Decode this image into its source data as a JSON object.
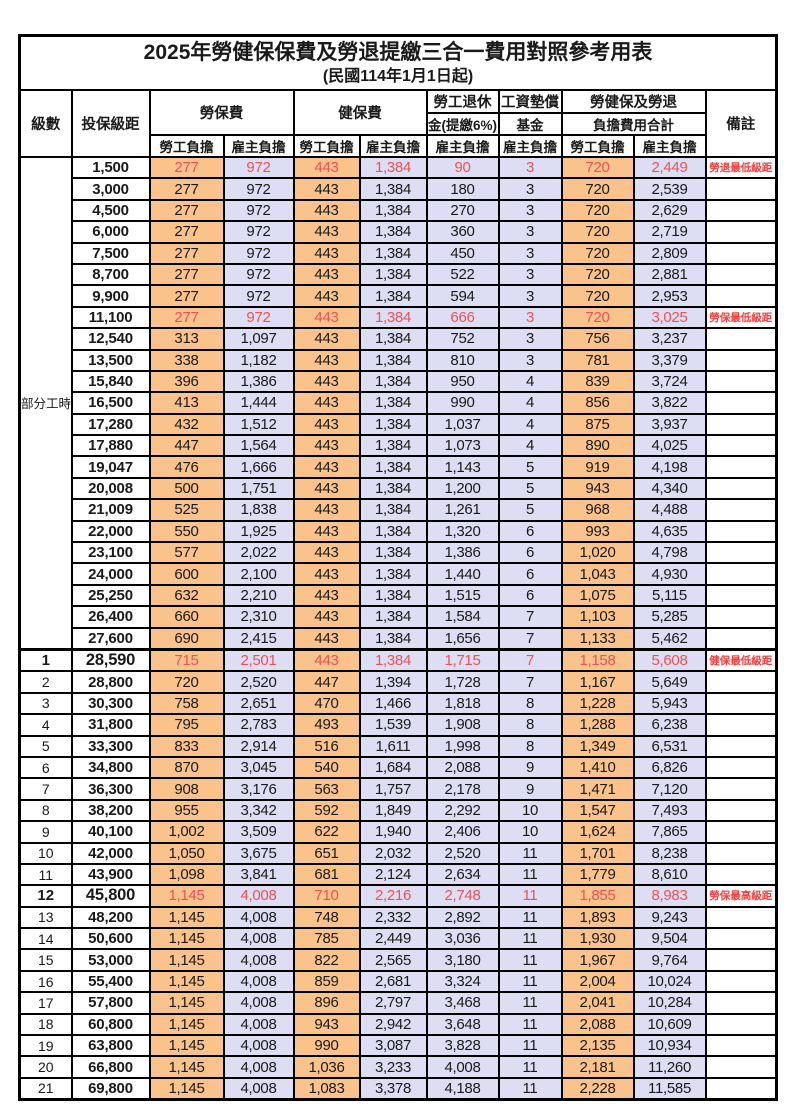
{
  "title": "2025年勞健保保費及勞退提繳三合一費用對照參考用表",
  "subtitle": "(民國114年1月1日起)",
  "colors": {
    "orange": "#FAC38C",
    "lavender": "#DDDDF3",
    "red_value": "#ED5157",
    "red_remark": "#FB3C3C",
    "border": "#000000"
  },
  "header": {
    "level": "級數",
    "bracket": "投保級距",
    "labor_insurance": "勞保費",
    "health_insurance": "健保費",
    "pension_line1": "勞工退休",
    "pension_line2": "金(提繳6%)",
    "wage_fund_line1": "工資墊償",
    "wage_fund_line2": "基金",
    "total_line1": "勞健保及勞退",
    "total_line2": "負擔費用合計",
    "remark": "備註",
    "employee_burden": "勞工負擔",
    "employer_burden": "雇主負擔"
  },
  "part_time": {
    "label": "部分工時",
    "rowspan": 23
  },
  "rows": [
    {
      "level": null,
      "pt_first": true,
      "bracket": "1,500",
      "fees": [
        "277",
        "972",
        "443",
        "1,384",
        "90",
        "3",
        "720",
        "2,449"
      ],
      "remark": "勞退最低級距",
      "red": true,
      "big": false
    },
    {
      "level": null,
      "bracket": "3,000",
      "fees": [
        "277",
        "972",
        "443",
        "1,384",
        "180",
        "3",
        "720",
        "2,539"
      ],
      "remark": "",
      "red": false,
      "big": false
    },
    {
      "level": null,
      "bracket": "4,500",
      "fees": [
        "277",
        "972",
        "443",
        "1,384",
        "270",
        "3",
        "720",
        "2,629"
      ],
      "remark": "",
      "red": false,
      "big": false
    },
    {
      "level": null,
      "bracket": "6,000",
      "fees": [
        "277",
        "972",
        "443",
        "1,384",
        "360",
        "3",
        "720",
        "2,719"
      ],
      "remark": "",
      "red": false,
      "big": false
    },
    {
      "level": null,
      "bracket": "7,500",
      "fees": [
        "277",
        "972",
        "443",
        "1,384",
        "450",
        "3",
        "720",
        "2,809"
      ],
      "remark": "",
      "red": false,
      "big": false
    },
    {
      "level": null,
      "bracket": "8,700",
      "fees": [
        "277",
        "972",
        "443",
        "1,384",
        "522",
        "3",
        "720",
        "2,881"
      ],
      "remark": "",
      "red": false,
      "big": false
    },
    {
      "level": null,
      "bracket": "9,900",
      "fees": [
        "277",
        "972",
        "443",
        "1,384",
        "594",
        "3",
        "720",
        "2,953"
      ],
      "remark": "",
      "red": false,
      "big": false
    },
    {
      "level": null,
      "bracket": "11,100",
      "fees": [
        "277",
        "972",
        "443",
        "1,384",
        "666",
        "3",
        "720",
        "3,025"
      ],
      "remark": "勞保最低級距",
      "red": true,
      "big": false
    },
    {
      "level": null,
      "bracket": "12,540",
      "fees": [
        "313",
        "1,097",
        "443",
        "1,384",
        "752",
        "3",
        "756",
        "3,237"
      ],
      "remark": "",
      "red": false,
      "big": false
    },
    {
      "level": null,
      "bracket": "13,500",
      "fees": [
        "338",
        "1,182",
        "443",
        "1,384",
        "810",
        "3",
        "781",
        "3,379"
      ],
      "remark": "",
      "red": false,
      "big": false
    },
    {
      "level": null,
      "bracket": "15,840",
      "fees": [
        "396",
        "1,386",
        "443",
        "1,384",
        "950",
        "4",
        "839",
        "3,724"
      ],
      "remark": "",
      "red": false,
      "big": false
    },
    {
      "level": null,
      "bracket": "16,500",
      "fees": [
        "413",
        "1,444",
        "443",
        "1,384",
        "990",
        "4",
        "856",
        "3,822"
      ],
      "remark": "",
      "red": false,
      "big": false
    },
    {
      "level": null,
      "bracket": "17,280",
      "fees": [
        "432",
        "1,512",
        "443",
        "1,384",
        "1,037",
        "4",
        "875",
        "3,937"
      ],
      "remark": "",
      "red": false,
      "big": false
    },
    {
      "level": null,
      "bracket": "17,880",
      "fees": [
        "447",
        "1,564",
        "443",
        "1,384",
        "1,073",
        "4",
        "890",
        "4,025"
      ],
      "remark": "",
      "red": false,
      "big": false
    },
    {
      "level": null,
      "bracket": "19,047",
      "fees": [
        "476",
        "1,666",
        "443",
        "1,384",
        "1,143",
        "5",
        "919",
        "4,198"
      ],
      "remark": "",
      "red": false,
      "big": false
    },
    {
      "level": null,
      "bracket": "20,008",
      "fees": [
        "500",
        "1,751",
        "443",
        "1,384",
        "1,200",
        "5",
        "943",
        "4,340"
      ],
      "remark": "",
      "red": false,
      "big": false
    },
    {
      "level": null,
      "bracket": "21,009",
      "fees": [
        "525",
        "1,838",
        "443",
        "1,384",
        "1,261",
        "5",
        "968",
        "4,488"
      ],
      "remark": "",
      "red": false,
      "big": false
    },
    {
      "level": null,
      "bracket": "22,000",
      "fees": [
        "550",
        "1,925",
        "443",
        "1,384",
        "1,320",
        "6",
        "993",
        "4,635"
      ],
      "remark": "",
      "red": false,
      "big": false
    },
    {
      "level": null,
      "bracket": "23,100",
      "fees": [
        "577",
        "2,022",
        "443",
        "1,384",
        "1,386",
        "6",
        "1,020",
        "4,798"
      ],
      "remark": "",
      "red": false,
      "big": false
    },
    {
      "level": null,
      "bracket": "24,000",
      "fees": [
        "600",
        "2,100",
        "443",
        "1,384",
        "1,440",
        "6",
        "1,043",
        "4,930"
      ],
      "remark": "",
      "red": false,
      "big": false
    },
    {
      "level": null,
      "bracket": "25,250",
      "fees": [
        "632",
        "2,210",
        "443",
        "1,384",
        "1,515",
        "6",
        "1,075",
        "5,115"
      ],
      "remark": "",
      "red": false,
      "big": false
    },
    {
      "level": null,
      "bracket": "26,400",
      "fees": [
        "660",
        "2,310",
        "443",
        "1,384",
        "1,584",
        "7",
        "1,103",
        "5,285"
      ],
      "remark": "",
      "red": false,
      "big": false
    },
    {
      "level": null,
      "bracket": "27,600",
      "fees": [
        "690",
        "2,415",
        "443",
        "1,384",
        "1,656",
        "7",
        "1,133",
        "5,462"
      ],
      "remark": "",
      "red": false,
      "big": false
    },
    {
      "level": "1",
      "sep": true,
      "bracket": "28,590",
      "fees": [
        "715",
        "2,501",
        "443",
        "1,384",
        "1,715",
        "7",
        "1,158",
        "5,608"
      ],
      "remark": "健保最低級距",
      "red": true,
      "big": true
    },
    {
      "level": "2",
      "bracket": "28,800",
      "fees": [
        "720",
        "2,520",
        "447",
        "1,394",
        "1,728",
        "7",
        "1,167",
        "5,649"
      ],
      "remark": "",
      "red": false,
      "big": false
    },
    {
      "level": "3",
      "bracket": "30,300",
      "fees": [
        "758",
        "2,651",
        "470",
        "1,466",
        "1,818",
        "8",
        "1,228",
        "5,943"
      ],
      "remark": "",
      "red": false,
      "big": false
    },
    {
      "level": "4",
      "bracket": "31,800",
      "fees": [
        "795",
        "2,783",
        "493",
        "1,539",
        "1,908",
        "8",
        "1,288",
        "6,238"
      ],
      "remark": "",
      "red": false,
      "big": false
    },
    {
      "level": "5",
      "bracket": "33,300",
      "fees": [
        "833",
        "2,914",
        "516",
        "1,611",
        "1,998",
        "8",
        "1,349",
        "6,531"
      ],
      "remark": "",
      "red": false,
      "big": false
    },
    {
      "level": "6",
      "bracket": "34,800",
      "fees": [
        "870",
        "3,045",
        "540",
        "1,684",
        "2,088",
        "9",
        "1,410",
        "6,826"
      ],
      "remark": "",
      "red": false,
      "big": false
    },
    {
      "level": "7",
      "bracket": "36,300",
      "fees": [
        "908",
        "3,176",
        "563",
        "1,757",
        "2,178",
        "9",
        "1,471",
        "7,120"
      ],
      "remark": "",
      "red": false,
      "big": false
    },
    {
      "level": "8",
      "bracket": "38,200",
      "fees": [
        "955",
        "3,342",
        "592",
        "1,849",
        "2,292",
        "10",
        "1,547",
        "7,493"
      ],
      "remark": "",
      "red": false,
      "big": false
    },
    {
      "level": "9",
      "bracket": "40,100",
      "fees": [
        "1,002",
        "3,509",
        "622",
        "1,940",
        "2,406",
        "10",
        "1,624",
        "7,865"
      ],
      "remark": "",
      "red": false,
      "big": false
    },
    {
      "level": "10",
      "bracket": "42,000",
      "fees": [
        "1,050",
        "3,675",
        "651",
        "2,032",
        "2,520",
        "11",
        "1,701",
        "8,238"
      ],
      "remark": "",
      "red": false,
      "big": false
    },
    {
      "level": "11",
      "bracket": "43,900",
      "fees": [
        "1,098",
        "3,841",
        "681",
        "2,124",
        "2,634",
        "11",
        "1,779",
        "8,610"
      ],
      "remark": "",
      "red": false,
      "big": false
    },
    {
      "level": "12",
      "bracket": "45,800",
      "fees": [
        "1,145",
        "4,008",
        "710",
        "2,216",
        "2,748",
        "11",
        "1,855",
        "8,983"
      ],
      "remark": "勞保最高級距",
      "red": true,
      "big": true
    },
    {
      "level": "13",
      "bracket": "48,200",
      "fees": [
        "1,145",
        "4,008",
        "748",
        "2,332",
        "2,892",
        "11",
        "1,893",
        "9,243"
      ],
      "remark": "",
      "red": false,
      "big": false
    },
    {
      "level": "14",
      "bracket": "50,600",
      "fees": [
        "1,145",
        "4,008",
        "785",
        "2,449",
        "3,036",
        "11",
        "1,930",
        "9,504"
      ],
      "remark": "",
      "red": false,
      "big": false
    },
    {
      "level": "15",
      "bracket": "53,000",
      "fees": [
        "1,145",
        "4,008",
        "822",
        "2,565",
        "3,180",
        "11",
        "1,967",
        "9,764"
      ],
      "remark": "",
      "red": false,
      "big": false
    },
    {
      "level": "16",
      "bracket": "55,400",
      "fees": [
        "1,145",
        "4,008",
        "859",
        "2,681",
        "3,324",
        "11",
        "2,004",
        "10,024"
      ],
      "remark": "",
      "red": false,
      "big": false
    },
    {
      "level": "17",
      "bracket": "57,800",
      "fees": [
        "1,145",
        "4,008",
        "896",
        "2,797",
        "3,468",
        "11",
        "2,041",
        "10,284"
      ],
      "remark": "",
      "red": false,
      "big": false
    },
    {
      "level": "18",
      "bracket": "60,800",
      "fees": [
        "1,145",
        "4,008",
        "943",
        "2,942",
        "3,648",
        "11",
        "2,088",
        "10,609"
      ],
      "remark": "",
      "red": false,
      "big": false
    },
    {
      "level": "19",
      "bracket": "63,800",
      "fees": [
        "1,145",
        "4,008",
        "990",
        "3,087",
        "3,828",
        "11",
        "2,135",
        "10,934"
      ],
      "remark": "",
      "red": false,
      "big": false
    },
    {
      "level": "20",
      "bracket": "66,800",
      "fees": [
        "1,145",
        "4,008",
        "1,036",
        "3,233",
        "4,008",
        "11",
        "2,181",
        "11,260"
      ],
      "remark": "",
      "red": false,
      "big": false
    },
    {
      "level": "21",
      "bracket": "69,800",
      "fees": [
        "1,145",
        "4,008",
        "1,083",
        "3,378",
        "4,188",
        "11",
        "2,228",
        "11,585"
      ],
      "remark": "",
      "red": false,
      "big": false
    }
  ]
}
